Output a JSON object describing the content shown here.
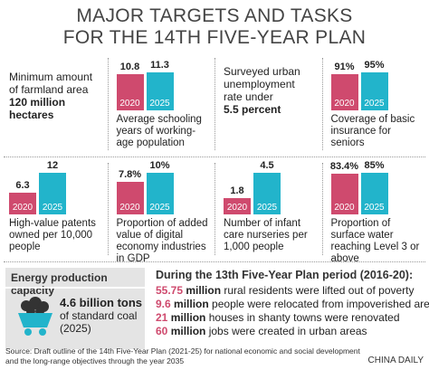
{
  "title_lines": [
    "MAJOR TARGETS AND TASKS",
    "FOR THE 14TH FIVE-YEAR PLAN"
  ],
  "targets": [
    {
      "kind": "text",
      "text": "Minimum amount of farmland area",
      "bold": "120 million hectares"
    },
    {
      "kind": "bar",
      "categories": [
        "2020",
        "2025"
      ],
      "values": [
        10.8,
        11.3
      ],
      "caption": "Average schooling years of working-age population"
    },
    {
      "kind": "text",
      "text": "Surveyed urban unemployment rate under",
      "bold": "5.5 percent"
    },
    {
      "kind": "bar",
      "categories": [
        "2020",
        "2025"
      ],
      "values": [
        91,
        95
      ],
      "value_labels": [
        "91%",
        "95%"
      ],
      "caption": "Coverage of basic insurance for seniors"
    },
    {
      "kind": "bar",
      "categories": [
        "2020",
        "2025"
      ],
      "values": [
        6.3,
        12
      ],
      "caption": "High-value patents owned per 10,000 people"
    },
    {
      "kind": "bar",
      "categories": [
        "2020",
        "2025"
      ],
      "values": [
        7.8,
        10
      ],
      "value_labels": [
        "7.8%",
        "10%"
      ],
      "caption": "Proportion of added value of digital economy industries in GDP"
    },
    {
      "kind": "bar",
      "categories": [
        "2020",
        "2025"
      ],
      "values": [
        1.8,
        4.5
      ],
      "caption": "Number of infant care nurseries per 1,000 people"
    },
    {
      "kind": "bar",
      "categories": [
        "2020",
        "2025"
      ],
      "values": [
        83.4,
        85
      ],
      "value_labels": [
        "83.4%",
        "85%"
      ],
      "caption": "Proportion of surface water reaching Level 3 or above"
    }
  ],
  "colors": [
    "#cf4a6e",
    "#22b4cb"
  ],
  "energy": {
    "title": "Energy production capacity",
    "amount": "4.6 billion tons",
    "detail": "of standard coal (2025)"
  },
  "achievements": {
    "title": "During the 13th Five-Year Plan period (2016-20):",
    "items": [
      {
        "figure": "55.75",
        "unit": "million",
        "text": "rural residents were lifted out of poverty"
      },
      {
        "figure": "9.6",
        "unit": "million",
        "text": "people were relocated from impoverished areas"
      },
      {
        "figure": "21",
        "unit": "million",
        "text": "houses in shanty towns were renovated"
      },
      {
        "figure": "60",
        "unit": "million",
        "text": "jobs were created in urban areas"
      }
    ]
  },
  "source": "Source: Draft outline of the 14th Five-Year Plan (2021-25) for national economic and social development and the long-range objectives through the year 2035",
  "credit": "CHINA DAILY"
}
